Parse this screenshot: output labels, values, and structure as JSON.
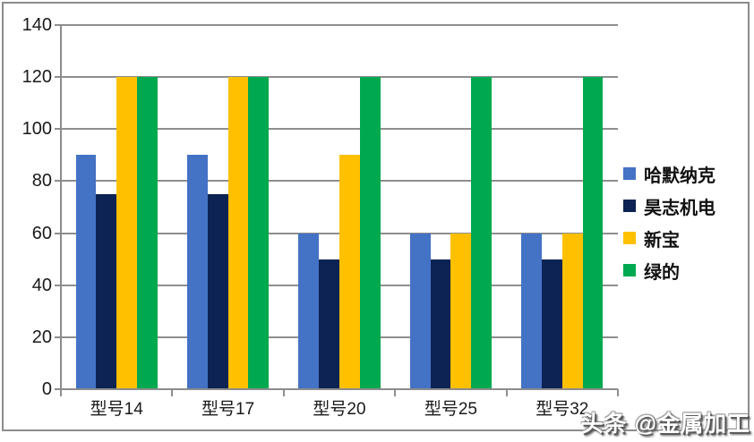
{
  "chart_data": {
    "type": "bar",
    "title": "",
    "xlabel": "",
    "ylabel": "",
    "categories": [
      "型号14",
      "型号17",
      "型号20",
      "型号25",
      "型号32"
    ],
    "series": [
      {
        "name": "哈默纳克",
        "color": "#4472C4",
        "values": [
          90,
          90,
          60,
          60,
          60
        ]
      },
      {
        "name": "昊志机电",
        "color": "#0D2354",
        "values": [
          75,
          75,
          50,
          50,
          50
        ]
      },
      {
        "name": "新宝",
        "color": "#FFC000",
        "values": [
          120,
          120,
          90,
          60,
          60
        ]
      },
      {
        "name": "绿的",
        "color": "#00A94F",
        "values": [
          120,
          120,
          120,
          120,
          120
        ]
      }
    ],
    "ylim": [
      0,
      140
    ],
    "yticks": [
      0,
      20,
      40,
      60,
      80,
      100,
      120,
      140
    ],
    "grid": true,
    "legend_position": "right"
  },
  "colors": {
    "grid": "#8e8e8e",
    "axis": "#8c8c8c",
    "frame_border": "#8c8c8c",
    "text": "#1a1a1a",
    "background": "#ffffff"
  },
  "watermark": {
    "text": "头条 @金属加工"
  }
}
